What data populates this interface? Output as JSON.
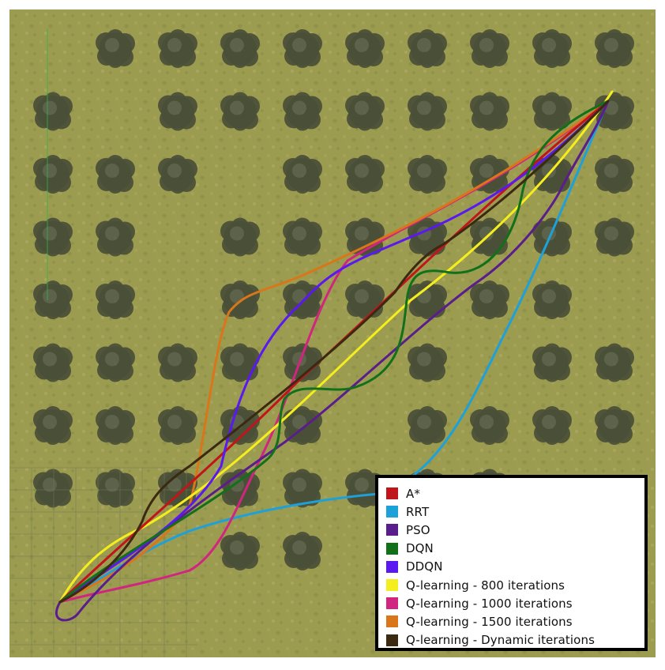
{
  "scene": {
    "title": "",
    "ground_color": "#9a9b4f",
    "border_color": "#ffffff",
    "tree_color": "#4a4f38",
    "tree_grid": {
      "rows": 9,
      "cols": 10,
      "missing": [
        [
          0,
          0
        ],
        [
          1,
          1
        ],
        [
          2,
          3
        ],
        [
          3,
          2
        ],
        [
          4,
          2
        ],
        [
          4,
          9
        ],
        [
          5,
          5
        ],
        [
          5,
          7
        ],
        [
          6,
          5
        ],
        [
          7,
          9
        ],
        [
          7,
          8
        ],
        [
          8,
          0
        ],
        [
          8,
          1
        ],
        [
          8,
          2
        ],
        [
          8,
          5
        ],
        [
          8,
          6
        ],
        [
          8,
          7
        ],
        [
          8,
          8
        ],
        [
          8,
          9
        ]
      ]
    },
    "start": "bottom-left",
    "goal": "top-right"
  },
  "legend": {
    "placement": "bottom-right",
    "items": [
      {
        "label": "A*",
        "color": "#c0161b"
      },
      {
        "label": "RRT",
        "color": "#1ea0d8"
      },
      {
        "label": "PSO",
        "color": "#5a1e8c"
      },
      {
        "label": "DQN",
        "color": "#12701a"
      },
      {
        "label": "DDQN",
        "color": "#5a19f0"
      },
      {
        "label": "Q-learning - 800 iterations",
        "color": "#f5ee1e"
      },
      {
        "label": "Q-learning - 1000 iterations",
        "color": "#d0267f"
      },
      {
        "label": "Q-learning - 1500 iterations",
        "color": "#d9761a"
      },
      {
        "label": "Q-learning - Dynamic iterations",
        "color": "#3b2912"
      }
    ]
  }
}
